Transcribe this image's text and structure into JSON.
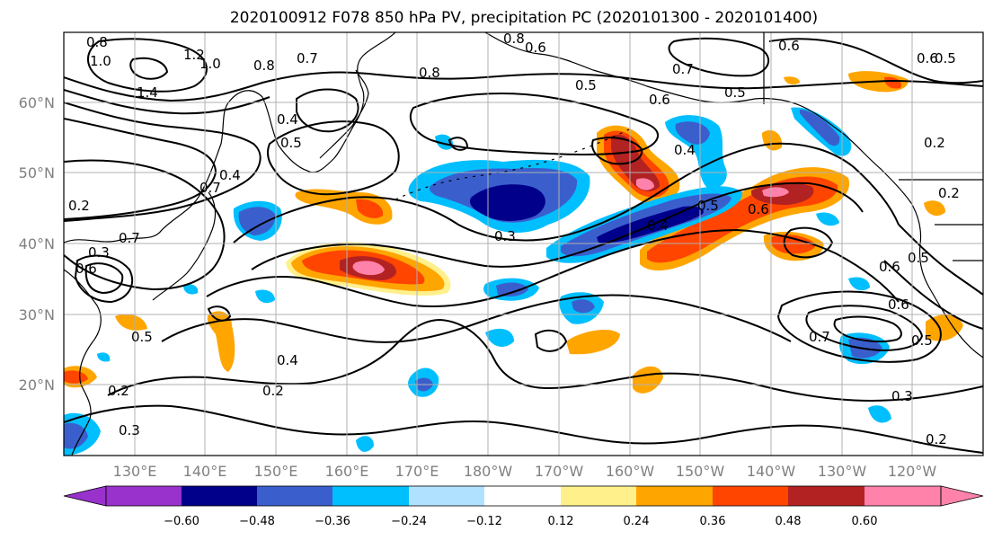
{
  "title": "2020100912 F078 850 hPa PV, precipitation PC (2020101300 - 2020101400)",
  "lat_labels": [
    "60°N",
    "50°N",
    "40°N",
    "30°N",
    "20°N"
  ],
  "lon_labels": [
    "130°E",
    "140°E",
    "150°E",
    "160°E",
    "170°E",
    "180°W",
    "170°W",
    "160°W",
    "150°W",
    "140°W",
    "130°W",
    "120°W"
  ],
  "colorbar": {
    "tick_labels": [
      "−0.60",
      "−0.48",
      "−0.36",
      "−0.24",
      "−0.12",
      "0.12",
      "0.24",
      "0.36",
      "0.48",
      "0.60"
    ],
    "colors": [
      "#9932cc",
      "#00008b",
      "#3a5fcd",
      "#00bfff",
      "#b0e2ff",
      "#ffffff",
      "#fff08c",
      "#ffa500",
      "#ff4500",
      "#b22222",
      "#ff82ab"
    ]
  },
  "contour_labels": [
    "0.8",
    "1.0",
    "1.2",
    "1.4",
    "1.0",
    "0.8",
    "0.7",
    "0.6",
    "0.4",
    "0.5",
    "0.4",
    "0.5",
    "0.6",
    "0.7",
    "0.5",
    "0.6",
    "0.8",
    "0.8",
    "0.6",
    "0.5",
    "0.2",
    "0.4",
    "0.3",
    "0.4",
    "0.5",
    "0.6",
    "0.5",
    "0.6",
    "0.7",
    "0.6",
    "0.2",
    "0.3",
    "0.2",
    "0.4",
    "0.2",
    "0.3",
    "0.5",
    "0.6",
    "0.3",
    "0.2",
    "0.5",
    "0.2",
    "0.7",
    "0.7"
  ]
}
